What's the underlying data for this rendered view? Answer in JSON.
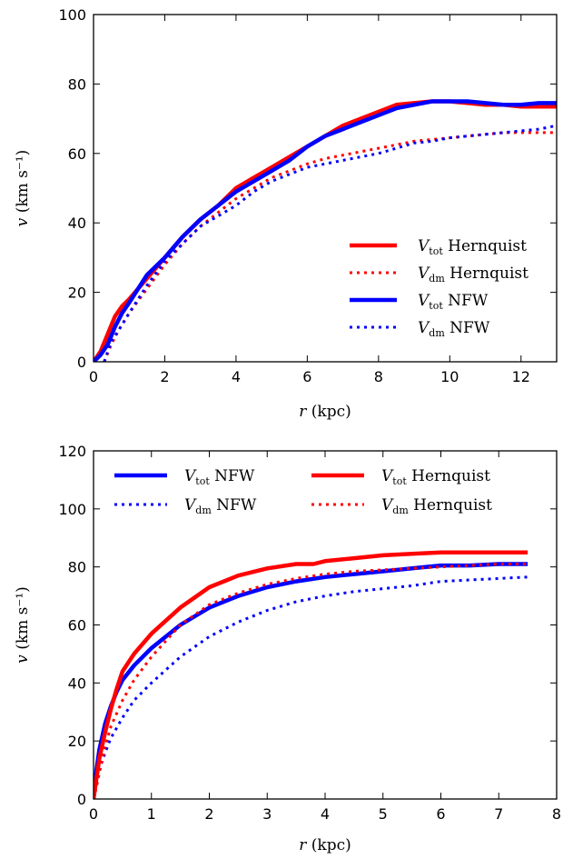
{
  "chart_data": [
    {
      "type": "line",
      "xlabel": "r (kpc)",
      "ylabel": "v (km s⁻¹)",
      "xlim": [
        0,
        13
      ],
      "ylim": [
        0,
        100
      ],
      "xticks": [
        "0",
        "2",
        "4",
        "6",
        "8",
        "10",
        "12"
      ],
      "yticks": [
        "0",
        "20",
        "40",
        "60",
        "80",
        "100"
      ],
      "grid": false,
      "legend_position": "lower-right",
      "series": [
        {
          "name": "V_tot Hernquist",
          "legend_main": "V",
          "legend_sub": "tot",
          "legend_rest": " Hernquist",
          "color": "#ff0000",
          "style": "solid",
          "x": [
            0,
            0.2,
            0.4,
            0.6,
            0.8,
            1.0,
            1.5,
            2.0,
            2.5,
            3.0,
            3.5,
            4.0,
            4.5,
            5.0,
            5.5,
            6.0,
            6.5,
            7.0,
            7.5,
            8.0,
            8.5,
            9.0,
            9.5,
            10.0,
            10.5,
            11.0,
            11.5,
            12.0,
            12.5,
            13.0
          ],
          "y": [
            0,
            3,
            8,
            13,
            16,
            18,
            24,
            30,
            36,
            41,
            45,
            50,
            53,
            56,
            59,
            62,
            65,
            68,
            70,
            72,
            74,
            74.5,
            75,
            75,
            74.5,
            74,
            74,
            73.5,
            73.5,
            73.5
          ]
        },
        {
          "name": "V_dm Hernquist",
          "legend_main": "V",
          "legend_sub": "dm",
          "legend_rest": " Hernquist",
          "color": "#ff0000",
          "style": "dotted",
          "x": [
            0.3,
            0.5,
            0.7,
            1.0,
            1.5,
            2.0,
            2.5,
            3.0,
            3.5,
            4.0,
            4.5,
            5.0,
            5.5,
            6.0,
            6.5,
            7.0,
            7.5,
            8.0,
            8.5,
            9.0,
            9.5,
            10.0,
            10.5,
            11.0,
            11.5,
            12.0,
            12.5,
            13.0
          ],
          "y": [
            0,
            5,
            9,
            14,
            21,
            28,
            34,
            39,
            43,
            47,
            50,
            53,
            55,
            57,
            58.5,
            59.5,
            60.5,
            61.5,
            62.5,
            63.5,
            64,
            64.5,
            65,
            65.5,
            66,
            66,
            66,
            66
          ]
        },
        {
          "name": "V_tot NFW",
          "legend_main": "V",
          "legend_sub": "tot",
          "legend_rest": " NFW",
          "color": "#0000ff",
          "style": "solid",
          "x": [
            0,
            0.2,
            0.4,
            0.6,
            0.8,
            1.0,
            1.5,
            2.0,
            2.5,
            3.0,
            3.5,
            4.0,
            4.5,
            5.0,
            5.5,
            6.0,
            6.5,
            7.0,
            7.5,
            8.0,
            8.5,
            9.0,
            9.5,
            10.0,
            10.5,
            11.0,
            11.5,
            12.0,
            12.5,
            13.0
          ],
          "y": [
            0,
            2,
            5,
            10,
            14,
            17,
            25,
            30,
            36,
            41,
            45,
            49,
            52,
            55,
            58,
            62,
            65,
            67,
            69,
            71,
            73,
            74,
            75,
            75,
            75,
            74.5,
            74,
            74,
            74.5,
            74.5
          ]
        },
        {
          "name": "V_dm NFW",
          "legend_main": "V",
          "legend_sub": "dm",
          "legend_rest": " NFW",
          "color": "#0000ff",
          "style": "dotted",
          "x": [
            0.3,
            0.5,
            0.7,
            1.0,
            1.5,
            2.0,
            2.5,
            3.0,
            3.5,
            4.0,
            4.5,
            5.0,
            5.5,
            6.0,
            6.5,
            7.0,
            7.5,
            8.0,
            8.5,
            9.0,
            9.5,
            10.0,
            10.5,
            11.0,
            11.5,
            12.0,
            12.5,
            13.0
          ],
          "y": [
            0,
            6,
            9,
            14,
            22,
            29,
            34,
            39,
            42,
            45,
            49,
            52,
            54,
            56,
            57,
            58,
            59,
            60,
            61.5,
            63,
            63.5,
            64.5,
            65,
            65.5,
            66,
            66.5,
            67,
            68
          ]
        }
      ]
    },
    {
      "type": "line",
      "xlabel": "r (kpc)",
      "ylabel": "v (km s⁻¹)",
      "xlim": [
        0,
        8
      ],
      "ylim": [
        0,
        120
      ],
      "xticks": [
        "0",
        "1",
        "2",
        "3",
        "4",
        "5",
        "6",
        "7",
        "8"
      ],
      "yticks": [
        "0",
        "20",
        "40",
        "60",
        "80",
        "100",
        "120"
      ],
      "grid": false,
      "legend_position": "top",
      "series": [
        {
          "name": "V_tot NFW",
          "legend_main": "V",
          "legend_sub": "tot",
          "legend_rest": " NFW",
          "color": "#0000ff",
          "style": "solid",
          "x": [
            0,
            0.05,
            0.1,
            0.2,
            0.3,
            0.4,
            0.5,
            0.7,
            1.0,
            1.5,
            2.0,
            2.5,
            3.0,
            3.5,
            4.0,
            4.5,
            5.0,
            5.5,
            6.0,
            6.5,
            7.0,
            7.5
          ],
          "y": [
            0,
            10,
            17,
            26,
            32,
            37,
            41,
            46,
            52,
            60,
            66,
            70,
            73,
            75,
            76.5,
            77.5,
            78.5,
            79.5,
            80.5,
            80.5,
            81,
            81
          ]
        },
        {
          "name": "V_dm NFW",
          "legend_main": "V",
          "legend_sub": "dm",
          "legend_rest": " NFW",
          "color": "#0000ff",
          "style": "dotted",
          "x": [
            0,
            0.05,
            0.1,
            0.2,
            0.3,
            0.5,
            0.7,
            1.0,
            1.5,
            2.0,
            2.5,
            3.0,
            3.5,
            4.0,
            4.5,
            5.0,
            5.5,
            6.0,
            6.5,
            7.0,
            7.5
          ],
          "y": [
            0,
            6,
            10,
            16,
            21,
            28,
            34,
            40,
            49,
            56,
            61,
            65,
            68,
            70,
            71.5,
            72.5,
            73.5,
            75,
            75.5,
            76,
            76.5
          ]
        },
        {
          "name": "V_tot Hernquist",
          "legend_main": "V",
          "legend_sub": "tot",
          "legend_rest": " Hernquist",
          "color": "#ff0000",
          "style": "solid",
          "x": [
            0,
            0.05,
            0.1,
            0.2,
            0.3,
            0.4,
            0.5,
            0.7,
            1.0,
            1.5,
            2.0,
            2.5,
            3.0,
            3.5,
            3.8,
            4.0,
            4.5,
            5.0,
            5.5,
            6.0,
            6.5,
            7.0,
            7.5
          ],
          "y": [
            0,
            7,
            14,
            23,
            31,
            38,
            44,
            50,
            57,
            66,
            73,
            77,
            79.5,
            81,
            81,
            82,
            83,
            84,
            84.5,
            85,
            85,
            85,
            85
          ]
        },
        {
          "name": "V_dm Hernquist",
          "legend_main": "V",
          "legend_sub": "dm",
          "legend_rest": " Hernquist",
          "color": "#ff0000",
          "style": "dotted",
          "x": [
            0,
            0.05,
            0.1,
            0.2,
            0.3,
            0.5,
            0.7,
            1.0,
            1.5,
            2.0,
            2.5,
            3.0,
            3.5,
            4.0,
            4.5,
            5.0,
            5.5,
            6.0,
            6.5,
            7.0,
            7.5
          ],
          "y": [
            0,
            4,
            9,
            18,
            25,
            34,
            41,
            49,
            60,
            67,
            71,
            74,
            76,
            77.5,
            78.5,
            79,
            79.5,
            80,
            80.5,
            81,
            81
          ]
        }
      ]
    }
  ]
}
